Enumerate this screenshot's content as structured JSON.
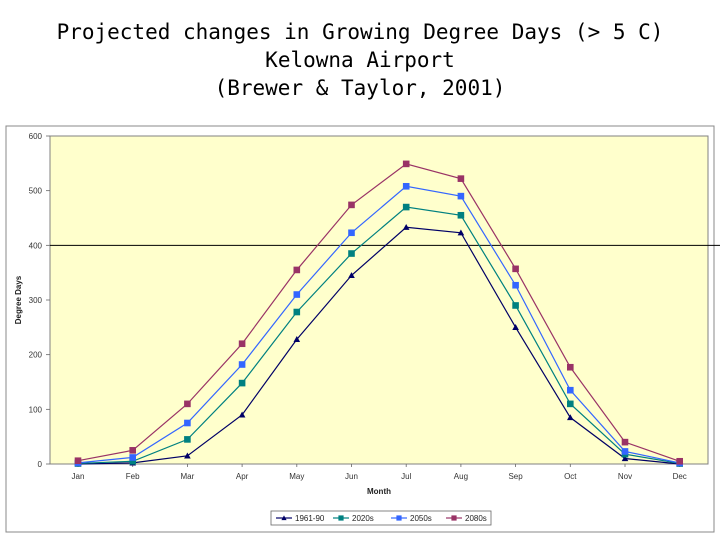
{
  "title": {
    "line1": "Projected changes in Growing Degree Days (> 5 C)",
    "line2": "Kelowna Airport",
    "line3": "(Brewer & Taylor, 2001)"
  },
  "chart_data": {
    "type": "line",
    "categories": [
      "Jan",
      "Feb",
      "Mar",
      "Apr",
      "May",
      "Jun",
      "Jul",
      "Aug",
      "Sep",
      "Oct",
      "Nov",
      "Dec"
    ],
    "xlabel": "Month",
    "ylabel": "Degree Days",
    "ylim": [
      0,
      600
    ],
    "yticks": [
      0,
      100,
      200,
      300,
      400,
      500,
      600
    ],
    "reference_line": 400,
    "plot_background": "#ffffcc",
    "grid": false,
    "legend_position": "bottom",
    "series": [
      {
        "name": "1961-90",
        "color": "#000066",
        "marker": "triangle",
        "values": [
          0,
          2,
          15,
          90,
          228,
          345,
          433,
          423,
          250,
          85,
          10,
          0
        ]
      },
      {
        "name": "2020s",
        "color": "#008080",
        "marker": "square",
        "values": [
          1,
          5,
          45,
          148,
          278,
          385,
          470,
          455,
          290,
          110,
          18,
          1
        ]
      },
      {
        "name": "2050s",
        "color": "#3366ff",
        "marker": "square",
        "values": [
          2,
          12,
          75,
          182,
          310,
          423,
          508,
          490,
          327,
          135,
          23,
          2
        ]
      },
      {
        "name": "2080s",
        "color": "#993366",
        "marker": "square",
        "values": [
          6,
          25,
          110,
          220,
          355,
          474,
          549,
          522,
          357,
          177,
          40,
          5
        ]
      }
    ]
  }
}
